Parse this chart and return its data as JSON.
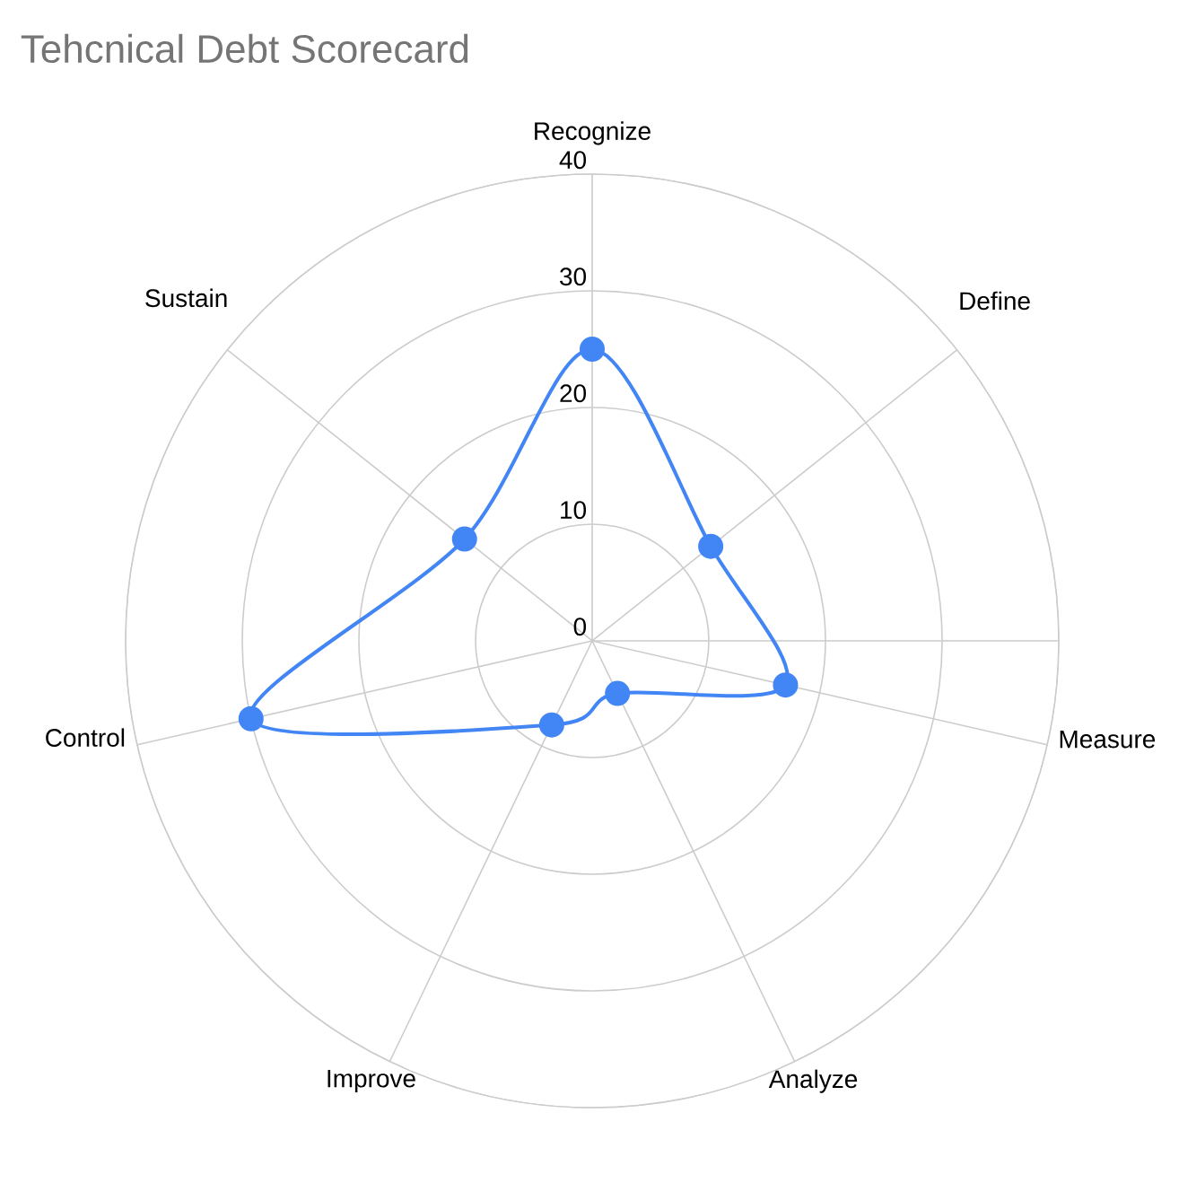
{
  "chart_data": {
    "type": "radar",
    "title": "Tehcnical Debt Scorecard",
    "categories": [
      "Recognize",
      "Define",
      "Measure",
      "Analyze",
      "Improve",
      "Control",
      "Sustain"
    ],
    "series": [
      {
        "color": "#4285f4",
        "values": [
          25,
          13,
          17,
          5,
          8,
          30,
          14
        ]
      }
    ],
    "ylim": [
      0,
      40
    ],
    "yticks": [
      0,
      10,
      20,
      30,
      40
    ],
    "grid": true,
    "marker": "circle"
  }
}
